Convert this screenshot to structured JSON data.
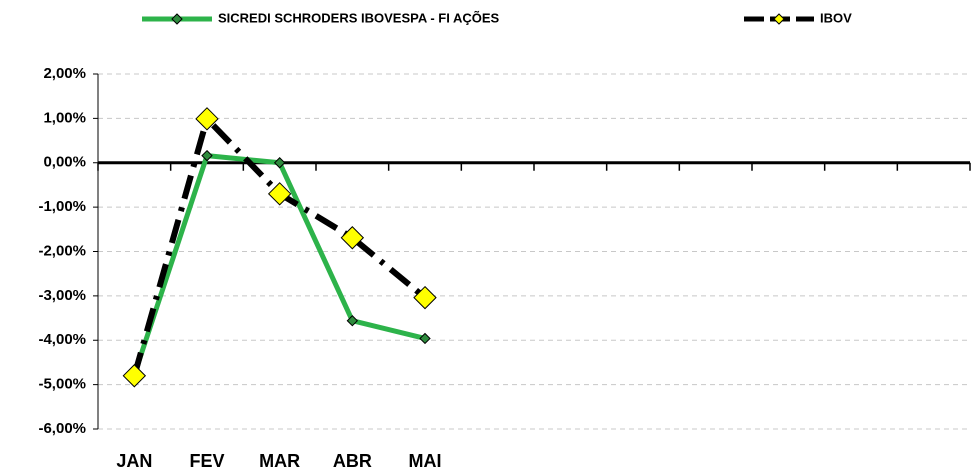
{
  "chart_data": {
    "type": "line",
    "categories": [
      "JAN",
      "FEV",
      "MAR",
      "ABR",
      "MAI",
      null,
      null,
      null,
      null,
      null,
      null,
      null
    ],
    "series": [
      {
        "name": "SICREDI SCHRODERS IBOVESPA - FI AÇÕES",
        "color": "#2db34a",
        "marker_color": "#2e8b3d",
        "line_style": "solid",
        "values": [
          -4.78,
          0.16,
          0.0,
          -3.56,
          -3.96,
          null,
          null,
          null,
          null,
          null,
          null,
          null
        ]
      },
      {
        "name": "IBOV",
        "color": "#000000",
        "marker_color": "#ffff00",
        "line_style": "dashed",
        "values": [
          -4.8,
          0.99,
          -0.7,
          -1.69,
          -3.04,
          null,
          null,
          null,
          null,
          null,
          null,
          null
        ]
      }
    ],
    "ylim": [
      -6,
      2
    ],
    "yticks": [
      {
        "value": -6,
        "label": "-6,00%"
      },
      {
        "value": -5,
        "label": "-5,00%"
      },
      {
        "value": -4,
        "label": "-4,00%"
      },
      {
        "value": -3,
        "label": "-3,00%"
      },
      {
        "value": -2,
        "label": "-2,00%"
      },
      {
        "value": -1,
        "label": "-1,00%"
      },
      {
        "value": 0,
        "label": "0,00%"
      },
      {
        "value": 1,
        "label": "1,00%"
      },
      {
        "value": 2,
        "label": "2,00%"
      }
    ],
    "grid": true,
    "legend": "top"
  }
}
